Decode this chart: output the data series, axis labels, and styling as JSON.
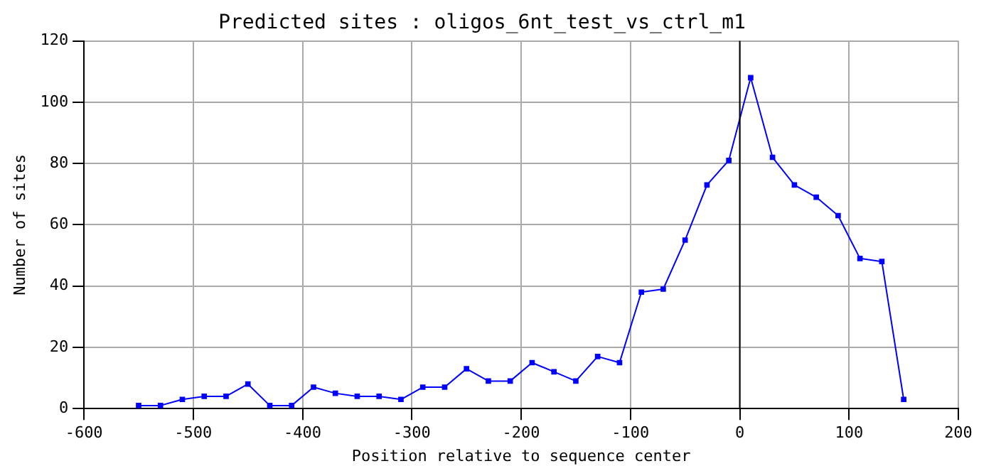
{
  "chart_data": {
    "type": "line",
    "title": "Predicted sites : oligos_6nt_test_vs_ctrl_m1",
    "xlabel": "Position relative to sequence center",
    "ylabel": "Number of sites",
    "x": [
      -550,
      -530,
      -510,
      -490,
      -470,
      -450,
      -430,
      -410,
      -390,
      -370,
      -350,
      -330,
      -310,
      -290,
      -270,
      -250,
      -230,
      -210,
      -190,
      -170,
      -150,
      -130,
      -110,
      -90,
      -70,
      -50,
      -30,
      -10,
      10,
      30,
      50,
      70,
      90,
      110,
      130,
      150
    ],
    "series": [
      {
        "color": "#0000ff",
        "values": [
          1,
          1,
          3,
          4,
          4,
          8,
          1,
          1,
          7,
          5,
          4,
          4,
          3,
          7,
          7,
          13,
          9,
          9,
          15,
          12,
          9,
          17,
          15,
          38,
          39,
          55,
          73,
          81,
          108,
          82,
          73,
          69,
          63,
          49,
          48,
          3
        ]
      }
    ],
    "xlim": [
      -600,
      200
    ],
    "xticks": [
      -600,
      -500,
      -400,
      -300,
      -200,
      -100,
      0,
      100,
      200
    ],
    "ylim": [
      0,
      120
    ],
    "yticks": [
      0,
      20,
      40,
      60,
      80,
      100,
      120
    ],
    "ref_lines": [
      {
        "axis": "x",
        "value": 0,
        "color": "#000000"
      }
    ],
    "grid": true,
    "legend": false,
    "marker": "square",
    "line_style": "solid"
  }
}
